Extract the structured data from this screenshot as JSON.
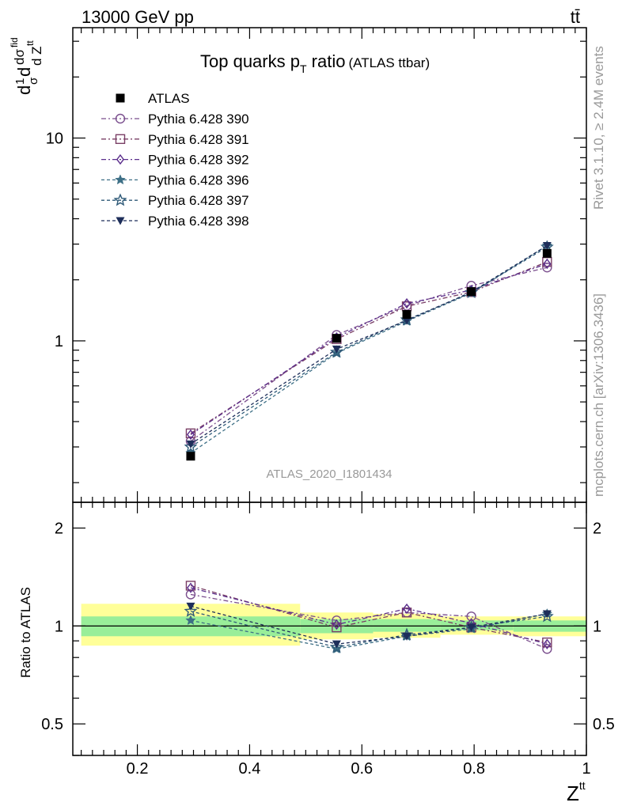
{
  "header": {
    "energy_label": "13000 GeV pp",
    "process_label": "tt̄",
    "side_rivet": "Rivet 3.1.10, ≥ 2.4M events",
    "side_mcplots": "mcplots.cern.ch [arXiv:1306.3436]"
  },
  "chart_data": [
    {
      "panel": "main",
      "type": "line",
      "title": "Top quarks p_T ratio (ATLAS ttbar)",
      "title_main": "Top quarks p",
      "title_sub": "T",
      "title_tail": " ratio",
      "title_small": "(ATLAS ttbar)",
      "ylabel_parts": {
        "d1": "d",
        "one": "1",
        "sigma": "σ",
        "d2": "d",
        "dsigma": "dσ",
        "fid": "fid",
        "dz": "d Z",
        "tt": "tt"
      },
      "watermark": "ATLAS_2020_I1801434",
      "x_range": [
        0.085,
        1.0
      ],
      "y_range": [
        0.16,
        35
      ],
      "y_scale": "log",
      "y_ticks": [
        {
          "v": 1,
          "label": "1"
        },
        {
          "v": 10,
          "label": "10"
        }
      ],
      "x": [
        0.295,
        0.555,
        0.68,
        0.795,
        0.93
      ],
      "reference": {
        "name": "ATLAS",
        "values": [
          0.27,
          1.03,
          1.35,
          1.75,
          2.7
        ]
      },
      "series": [
        {
          "name": "Pythia 6.428 390",
          "color": "#7b4f8e",
          "marker": "circle",
          "values": [
            0.32,
            1.07,
            1.49,
            1.87,
            2.3
          ]
        },
        {
          "name": "Pythia 6.428 391",
          "color": "#7a3f66",
          "marker": "square",
          "values": [
            0.35,
            1.02,
            1.48,
            1.74,
            2.45
          ]
        },
        {
          "name": "Pythia 6.428 392",
          "color": "#5b2e8c",
          "marker": "diamond",
          "values": [
            0.345,
            1.04,
            1.53,
            1.78,
            2.4
          ]
        },
        {
          "name": "Pythia 6.428 396",
          "color": "#3d6f86",
          "marker": "star",
          "values": [
            0.28,
            0.87,
            1.25,
            1.72,
            2.95
          ]
        },
        {
          "name": "Pythia 6.428 397",
          "color": "#2f5a78",
          "marker": "star-open",
          "values": [
            0.3,
            0.88,
            1.27,
            1.73,
            2.9
          ]
        },
        {
          "name": "Pythia 6.428 398",
          "color": "#1e2e5a",
          "marker": "triangle-down",
          "values": [
            0.31,
            0.91,
            1.26,
            1.74,
            2.95
          ]
        }
      ]
    },
    {
      "panel": "ratio",
      "type": "line",
      "ylabel": "Ratio to ATLAS",
      "xlabel": "Z",
      "xlabel_sup": "tt",
      "x_range": [
        0.085,
        1.0
      ],
      "y_range": [
        0.4,
        2.4
      ],
      "y_scale": "log",
      "x_ticks": [
        {
          "v": 0.2,
          "label": "0.2"
        },
        {
          "v": 0.4,
          "label": "0.4"
        },
        {
          "v": 0.6,
          "label": "0.6"
        },
        {
          "v": 0.8,
          "label": "0.8"
        },
        {
          "v": 1.0,
          "label": "1"
        }
      ],
      "y_ticks": [
        {
          "v": 0.5,
          "label": "0.5"
        },
        {
          "v": 1,
          "label": "1"
        },
        {
          "v": 2,
          "label": "2"
        }
      ],
      "bins": [
        {
          "lo": 0.1,
          "hi": 0.49,
          "green": [
            0.93,
            1.07
          ],
          "yellow": [
            0.87,
            1.17
          ]
        },
        {
          "lo": 0.49,
          "hi": 0.62,
          "green": [
            0.95,
            1.05
          ],
          "yellow": [
            0.91,
            1.1
          ]
        },
        {
          "lo": 0.62,
          "hi": 0.74,
          "green": [
            0.96,
            1.05
          ],
          "yellow": [
            0.92,
            1.09
          ]
        },
        {
          "lo": 0.74,
          "hi": 0.87,
          "green": [
            0.97,
            1.04
          ],
          "yellow": [
            0.94,
            1.07
          ]
        },
        {
          "lo": 0.87,
          "hi": 1.0,
          "green": [
            0.96,
            1.04
          ],
          "yellow": [
            0.93,
            1.07
          ]
        }
      ],
      "x": [
        0.295,
        0.555,
        0.68,
        0.795,
        0.93
      ],
      "series": [
        {
          "name": "Pythia 6.428 390",
          "values": [
            1.25,
            1.04,
            1.1,
            1.07,
            0.85
          ]
        },
        {
          "name": "Pythia 6.428 391",
          "values": [
            1.33,
            0.99,
            1.1,
            0.99,
            0.89
          ]
        },
        {
          "name": "Pythia 6.428 392",
          "values": [
            1.31,
            1.01,
            1.13,
            1.02,
            0.88
          ]
        },
        {
          "name": "Pythia 6.428 396",
          "values": [
            1.04,
            0.85,
            0.93,
            0.98,
            1.09
          ]
        },
        {
          "name": "Pythia 6.428 397",
          "values": [
            1.11,
            0.86,
            0.94,
            0.99,
            1.07
          ]
        },
        {
          "name": "Pythia 6.428 398",
          "values": [
            1.15,
            0.88,
            0.93,
            0.99,
            1.09
          ]
        }
      ]
    }
  ]
}
